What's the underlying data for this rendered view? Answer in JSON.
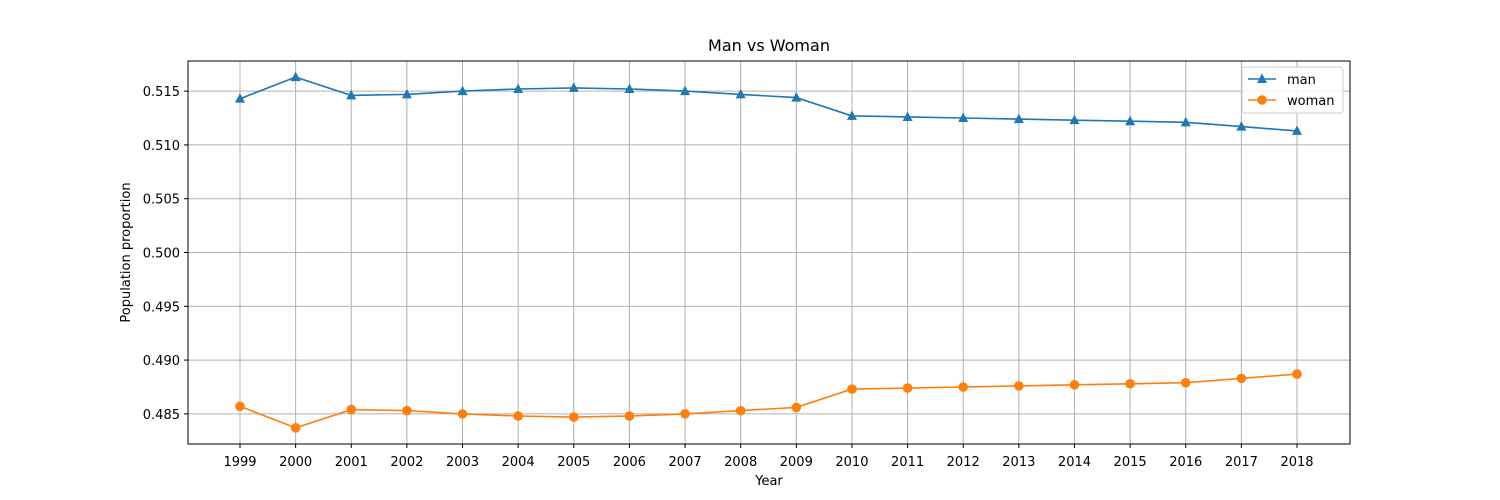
{
  "chart_data": {
    "type": "line",
    "title": "Man vs Woman",
    "xlabel": "Year",
    "ylabel": "Population proportion",
    "x": [
      "1999",
      "2000",
      "2001",
      "2002",
      "2003",
      "2004",
      "2005",
      "2006",
      "2007",
      "2008",
      "2009",
      "2010",
      "2011",
      "2012",
      "2013",
      "2014",
      "2015",
      "2016",
      "2017",
      "2018"
    ],
    "ylim": [
      0.4822,
      0.5178
    ],
    "yticks": [
      "0.485",
      "0.490",
      "0.495",
      "0.500",
      "0.505",
      "0.510",
      "0.515"
    ],
    "grid": true,
    "legend_position": "top-right",
    "series": [
      {
        "name": "man",
        "color": "#1f77b4",
        "marker": "triangle",
        "values": [
          0.5143,
          0.5163,
          0.5146,
          0.5147,
          0.515,
          0.5152,
          0.5153,
          0.5152,
          0.515,
          0.5147,
          0.5144,
          0.5127,
          0.5126,
          0.5125,
          0.5124,
          0.5123,
          0.5122,
          0.5121,
          0.5117,
          0.5113
        ]
      },
      {
        "name": "woman",
        "color": "#ff7f0e",
        "marker": "circle",
        "values": [
          0.4857,
          0.4837,
          0.4854,
          0.4853,
          0.485,
          0.4848,
          0.4847,
          0.4848,
          0.485,
          0.4853,
          0.4856,
          0.4873,
          0.4874,
          0.4875,
          0.4876,
          0.4877,
          0.4878,
          0.4879,
          0.4883,
          0.4887
        ]
      }
    ]
  }
}
